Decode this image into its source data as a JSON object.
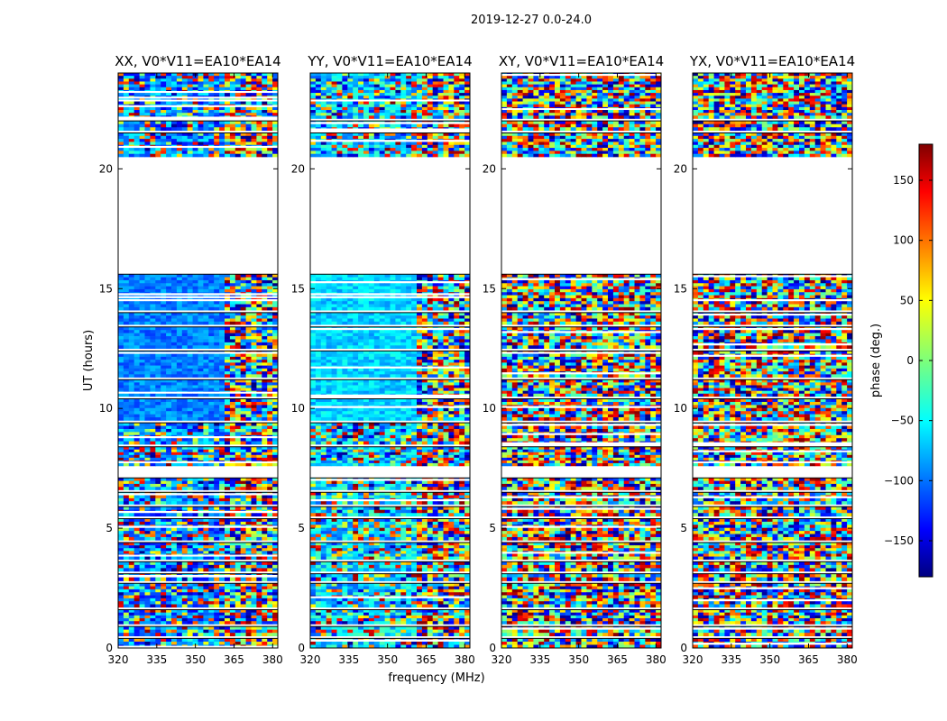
{
  "figure": {
    "suptitle": "2019-12-27 0.0-24.0"
  },
  "chart_data": {
    "type": "heatmap",
    "title": "2019-12-27 0.0-24.0",
    "xlabel": "frequency (MHz)",
    "ylabel": "UT (hours)",
    "xlim": [
      320,
      382
    ],
    "ylim": [
      0,
      24
    ],
    "xticks": [
      320,
      335,
      350,
      365,
      380
    ],
    "yticks": [
      0,
      5,
      10,
      15,
      20
    ],
    "panels": [
      {
        "title": "XX, V0*V11=EA10*EA14",
        "pol": "XX",
        "base_phase": -90
      },
      {
        "title": "YY, V0*V11=EA10*EA14",
        "pol": "YY",
        "base_phase": -60
      },
      {
        "title": "XY, V0*V11=EA10*EA14",
        "pol": "XY",
        "base_phase": null
      },
      {
        "title": "YX, V0*V11=EA10*EA14",
        "pol": "YX",
        "base_phase": null
      }
    ],
    "data_blocks_ut": [
      [
        0.0,
        0.4
      ],
      [
        0.5,
        0.9
      ],
      [
        1.0,
        1.6
      ],
      [
        1.7,
        2.7
      ],
      [
        2.8,
        3.1
      ],
      [
        3.2,
        3.6
      ],
      [
        3.7,
        4.4
      ],
      [
        4.5,
        5.4
      ],
      [
        5.5,
        5.9
      ],
      [
        6.0,
        6.5
      ],
      [
        6.6,
        7.1
      ],
      [
        7.6,
        8.4
      ],
      [
        8.5,
        9.4
      ],
      [
        9.5,
        10.4
      ],
      [
        10.5,
        11.2
      ],
      [
        11.3,
        12.4
      ],
      [
        12.5,
        13.4
      ],
      [
        13.5,
        14.0
      ],
      [
        14.1,
        15.6
      ],
      [
        20.5,
        21.5
      ],
      [
        21.6,
        22.0
      ],
      [
        22.1,
        24.0
      ]
    ],
    "colorbar": {
      "label": "phase (deg.)",
      "range": [
        -180,
        180
      ],
      "ticks": [
        -150,
        -100,
        -50,
        0,
        50,
        100,
        150
      ],
      "tick_labels": [
        "−150",
        "−100",
        "−50",
        "0",
        "50",
        "100",
        "150"
      ],
      "colormap": "jet"
    }
  }
}
